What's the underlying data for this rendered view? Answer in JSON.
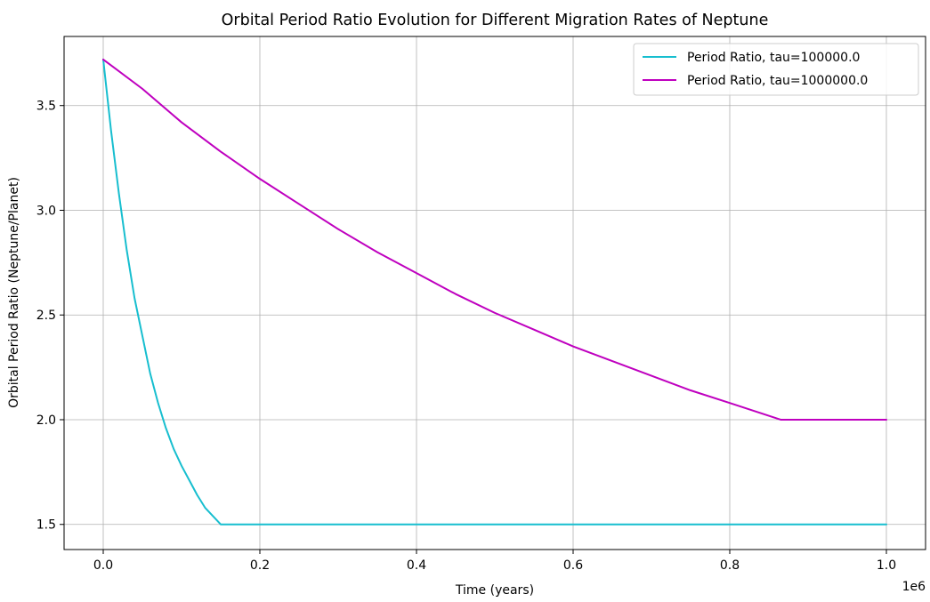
{
  "chart_data": {
    "type": "line",
    "title": "Orbital Period Ratio Evolution for Different Migration Rates of Neptune",
    "xlabel": "Time (years)",
    "ylabel": "Orbital Period Ratio (Neptune/Planet)",
    "x_offset_text": "1e6",
    "xlim": [
      -0.05,
      1.05
    ],
    "ylim": [
      1.38,
      3.83
    ],
    "xticks": [
      0.0,
      0.2,
      0.4,
      0.6,
      0.8,
      1.0
    ],
    "xtick_labels": [
      "0.0",
      "0.2",
      "0.4",
      "0.6",
      "0.8",
      "1.0"
    ],
    "yticks": [
      1.5,
      2.0,
      2.5,
      3.0,
      3.5
    ],
    "ytick_labels": [
      "1.5",
      "2.0",
      "2.5",
      "3.0",
      "3.5"
    ],
    "grid": true,
    "legend_position": "top-right",
    "series": [
      {
        "name": "Period Ratio, tau=100000.0",
        "color": "#17becf",
        "x": [
          0.0,
          0.01,
          0.02,
          0.03,
          0.04,
          0.05,
          0.06,
          0.07,
          0.08,
          0.09,
          0.1,
          0.11,
          0.12,
          0.13,
          0.14,
          0.15,
          0.2,
          0.3,
          0.4,
          0.5,
          0.6,
          0.7,
          0.8,
          0.9,
          1.0
        ],
        "y": [
          3.72,
          3.38,
          3.08,
          2.81,
          2.58,
          2.4,
          2.22,
          2.08,
          1.96,
          1.86,
          1.78,
          1.71,
          1.64,
          1.58,
          1.54,
          1.5,
          1.5,
          1.5,
          1.5,
          1.5,
          1.5,
          1.5,
          1.5,
          1.5,
          1.5
        ]
      },
      {
        "name": "Period Ratio, tau=1000000.0",
        "color": "#bf00bf",
        "x": [
          0.0,
          0.05,
          0.1,
          0.15,
          0.2,
          0.25,
          0.3,
          0.35,
          0.4,
          0.45,
          0.5,
          0.55,
          0.6,
          0.65,
          0.7,
          0.75,
          0.8,
          0.865,
          0.9,
          0.95,
          1.0
        ],
        "y": [
          3.72,
          3.58,
          3.42,
          3.28,
          3.15,
          3.03,
          2.91,
          2.8,
          2.7,
          2.6,
          2.51,
          2.43,
          2.35,
          2.28,
          2.21,
          2.14,
          2.08,
          2.0,
          2.0,
          2.0,
          2.0
        ]
      }
    ]
  }
}
